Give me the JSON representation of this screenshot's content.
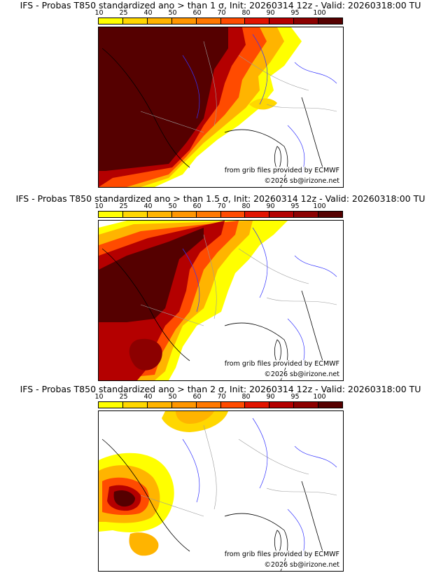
{
  "colorbar": {
    "ticks": [
      "10",
      "25",
      "40",
      "50",
      "60",
      "70",
      "80",
      "90",
      "95",
      "100"
    ],
    "colors": [
      "#ffff00",
      "#ffd700",
      "#ffb400",
      "#ff9600",
      "#ff7800",
      "#ff4b00",
      "#e11400",
      "#b40000",
      "#8c0000",
      "#550000"
    ]
  },
  "panels": [
    {
      "title": "IFS - Probas T850  standardized ano > than 1 σ, Init: 20260314 12z - Valid: 20260318:00 TU",
      "credit_source": "from grib files provided by ECMWF",
      "credit_copyright": "©2026 sb@irizone.net"
    },
    {
      "title": "IFS - Probas T850  standardized ano > than 1.5 σ, Init: 20260314 12z - Valid: 20260318:00 TU",
      "credit_source": "from grib files provided by ECMWF",
      "credit_copyright": "©2026 sb@irizone.net"
    },
    {
      "title": "IFS - Probas T850  standardized ano > than 2 σ, Init: 20260314 12z - Valid: 20260318:00 TU",
      "credit_source": "from grib files provided by ECMWF",
      "credit_copyright": "©2026 sb@irizone.net"
    }
  ]
}
